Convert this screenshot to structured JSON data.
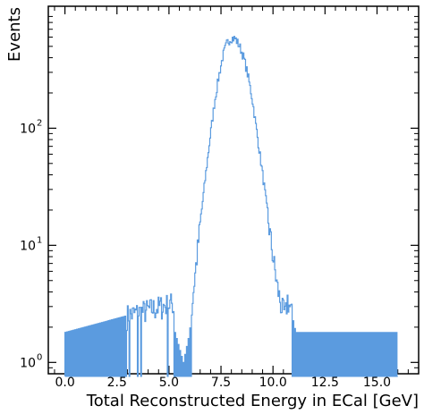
{
  "chart_data": {
    "type": "step-histogram",
    "title": "",
    "xlabel": "Total Reconstructed Energy in ECal [GeV]",
    "ylabel": "Events",
    "xlim": [
      -0.8,
      17.0
    ],
    "ylim": [
      0.8,
      1100
    ],
    "yscale": "log",
    "x_ticks": [
      0.0,
      2.5,
      5.0,
      7.5,
      10.0,
      12.5,
      15.0
    ],
    "x_tick_labels": [
      "0.0",
      "2.5",
      "5.0",
      "7.5",
      "10.0",
      "12.5",
      "15.0"
    ],
    "y_ticks": [
      1,
      10,
      100
    ],
    "y_tick_base": "10",
    "y_tick_exponents": [
      "0",
      "1",
      "2"
    ],
    "line_color": "#5b9bdf",
    "grid": false,
    "series": [
      {
        "x": [
          0.0,
          5.2,
          5.3,
          5.7,
          6.0,
          6.2,
          6.4,
          6.6,
          6.8,
          7.0,
          7.2,
          7.4,
          7.6,
          7.8,
          8.0,
          8.2,
          8.4,
          8.6,
          8.8,
          9.0,
          9.2,
          9.4,
          9.6,
          9.8,
          10.0,
          10.2,
          10.4,
          10.6,
          10.7,
          11.0,
          11.1,
          16.0
        ],
        "values": [
          1.8,
          3.2,
          1.8,
          1.0,
          1.8,
          4.5,
          10,
          22,
          45,
          90,
          170,
          280,
          420,
          540,
          590,
          580,
          500,
          400,
          280,
          180,
          100,
          55,
          30,
          15,
          8,
          4.5,
          3.0,
          2.5,
          3.5,
          2.2,
          1.8,
          1.8
        ]
      }
    ]
  }
}
